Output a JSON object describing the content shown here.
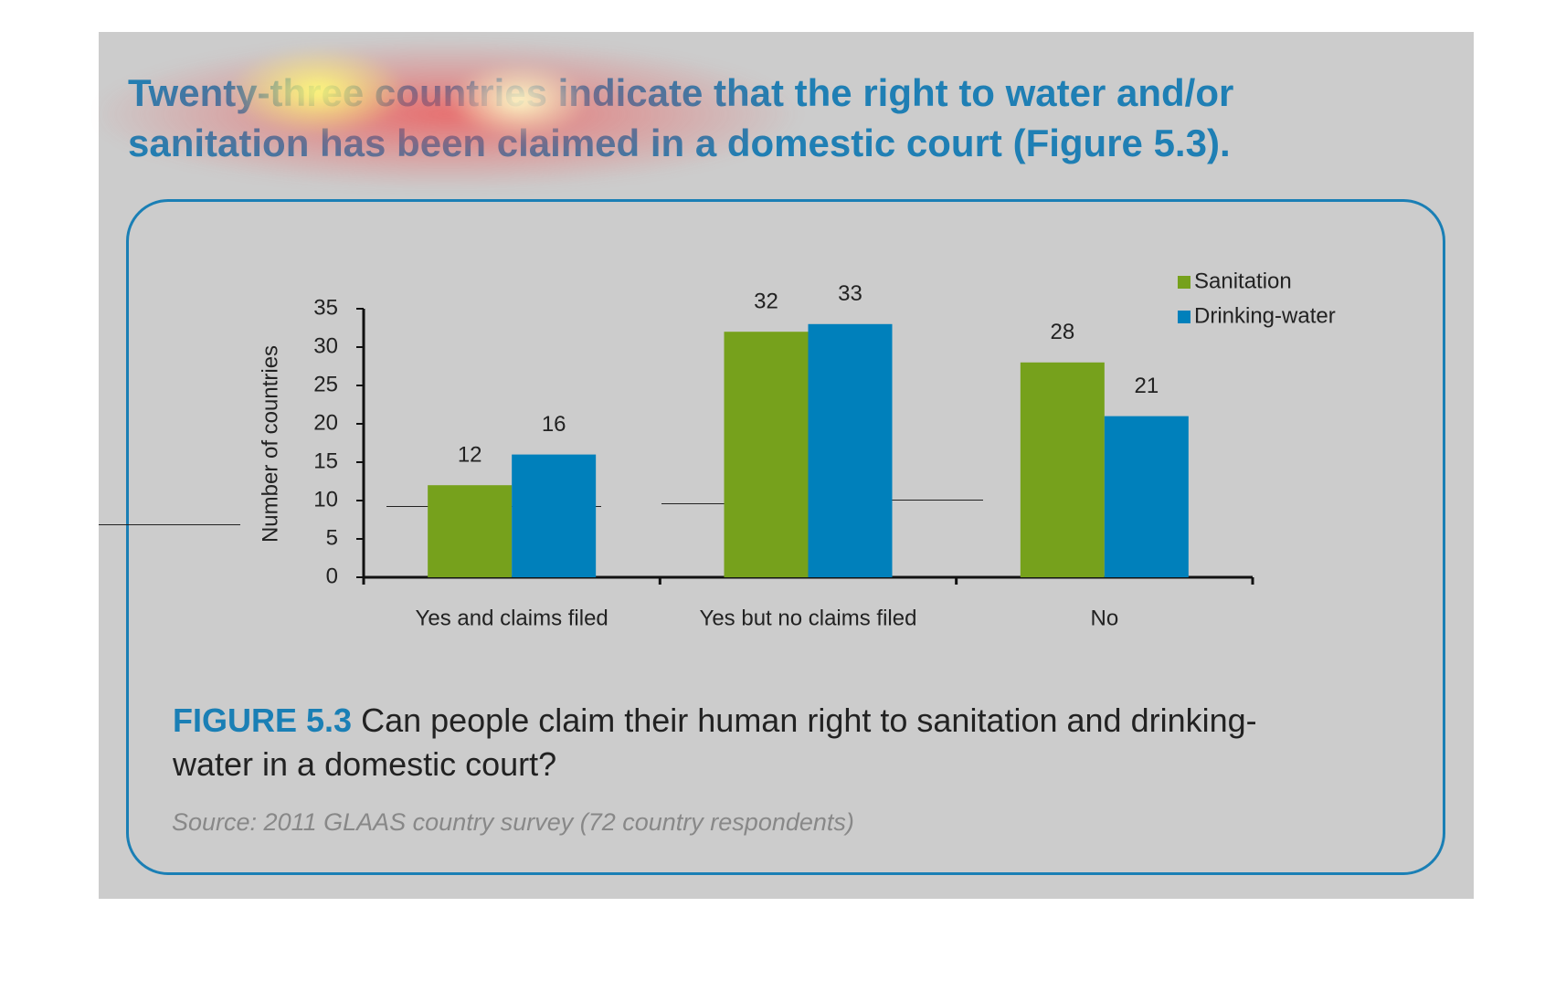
{
  "heading": "Twenty-three countries indicate that the right to water and/or sanitation has been claimed in a domestic court (Figure 5.3).",
  "figure_label": "FIGURE 5.3",
  "caption": "Can people claim their human right to sanitation and drinking-water in a domestic court?",
  "source": "Source: 2011 GLAAS country survey (72 country respondents)",
  "chart_data": {
    "type": "bar",
    "ylabel": "Number of countries",
    "categories": [
      "Yes and claims filed",
      "Yes but no claims filed",
      "No"
    ],
    "series": [
      {
        "name": "Sanitation",
        "color": "#76a11c",
        "values": [
          12,
          32,
          28
        ]
      },
      {
        "name": "Drinking-water",
        "color": "#0080bb",
        "values": [
          16,
          33,
          21
        ]
      }
    ],
    "ylim": [
      0,
      35
    ],
    "yticks": [
      0,
      5,
      10,
      15,
      20,
      25,
      30,
      35
    ],
    "legend": "upper right",
    "grid": false
  }
}
